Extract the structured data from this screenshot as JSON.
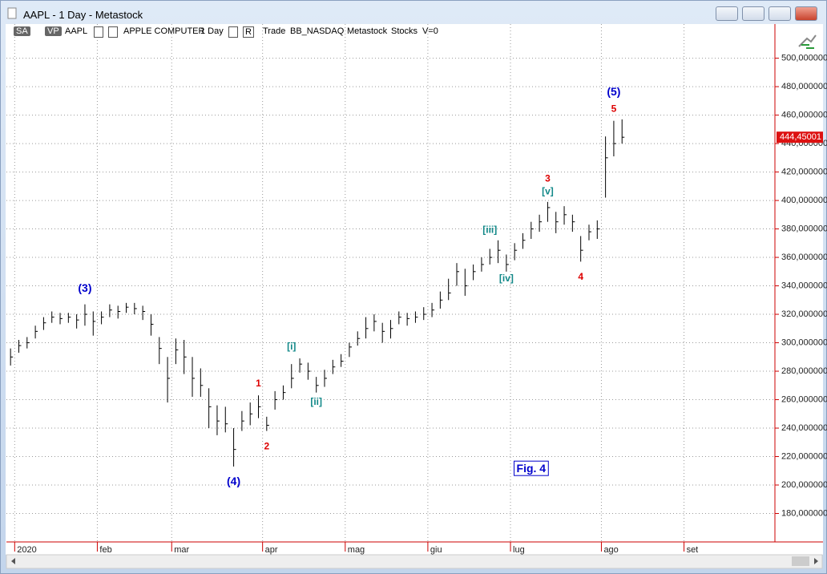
{
  "window": {
    "title": "AAPL - 1 Day - Metastock",
    "toolbar": [
      "SA",
      "VP",
      "AAPL",
      "APPLE COMPUTER",
      "1 Day",
      "R",
      "Trade",
      "BB_NASDAQ",
      "Metastock",
      "Stocks",
      "V=0"
    ]
  },
  "chart_data": {
    "type": "hlc",
    "color": "#000000",
    "grid": true,
    "categories": [
      null,
      "2020",
      null,
      null,
      null,
      null,
      null,
      null,
      null,
      null,
      null,
      "feb",
      null,
      null,
      null,
      null,
      null,
      null,
      null,
      null,
      "mar",
      null,
      null,
      null,
      null,
      null,
      null,
      null,
      null,
      null,
      null,
      "apr",
      null,
      null,
      null,
      null,
      null,
      null,
      null,
      null,
      null,
      "mag",
      null,
      null,
      null,
      null,
      null,
      null,
      null,
      null,
      null,
      "giu",
      null,
      null,
      null,
      null,
      null,
      null,
      null,
      null,
      null,
      "lug",
      null,
      null,
      null,
      null,
      null,
      null,
      null,
      null,
      null,
      null,
      "ago",
      null,
      null,
      null,
      null,
      null,
      null,
      null,
      null,
      null,
      "set",
      null,
      null,
      null,
      null,
      null,
      null,
      null,
      null,
      null,
      null
    ],
    "high": [
      296,
      302,
      304,
      312,
      318,
      322,
      321,
      321,
      320,
      327,
      322,
      322,
      327,
      326,
      328,
      328,
      326,
      320,
      304,
      290,
      303,
      302,
      290,
      282,
      268,
      256,
      255,
      240,
      252,
      258,
      263,
      248,
      266,
      270,
      285,
      289,
      286,
      276,
      281,
      288,
      292,
      300,
      308,
      318,
      320,
      314,
      316,
      322,
      321,
      322,
      325,
      328,
      336,
      345,
      356,
      352,
      355,
      360,
      366,
      372,
      362,
      370,
      377,
      385,
      390,
      399,
      392,
      396,
      390,
      375,
      383,
      386,
      445,
      456,
      457,
      null,
      null,
      null,
      null,
      null,
      null,
      null,
      null,
      null,
      null,
      null,
      null,
      null,
      null,
      null,
      null,
      null,
      null
    ],
    "low": [
      284,
      293,
      296,
      303,
      309,
      314,
      313,
      314,
      310,
      312,
      305,
      313,
      318,
      317,
      321,
      320,
      316,
      305,
      285,
      258,
      285,
      278,
      262,
      262,
      240,
      235,
      237,
      213,
      238,
      242,
      247,
      238,
      253,
      260,
      268,
      279,
      274,
      265,
      269,
      278,
      283,
      290,
      298,
      303,
      308,
      300,
      303,
      313,
      312,
      314,
      316,
      318,
      324,
      330,
      340,
      333,
      344,
      350,
      355,
      356,
      350,
      358,
      366,
      373,
      378,
      385,
      377,
      383,
      378,
      357,
      372,
      373,
      402,
      431,
      440,
      null,
      null,
      null,
      null,
      null,
      null,
      null,
      null,
      null,
      null,
      null,
      null,
      null,
      null,
      null,
      null,
      null,
      null
    ],
    "close": [
      290,
      298,
      300,
      308,
      314,
      318,
      317,
      318,
      316,
      320,
      315,
      318,
      323,
      322,
      325,
      324,
      322,
      313,
      296,
      275,
      295,
      290,
      275,
      270,
      255,
      245,
      243,
      225,
      245,
      250,
      255,
      242,
      260,
      265,
      275,
      285,
      280,
      270,
      275,
      283,
      287,
      297,
      303,
      310,
      315,
      308,
      310,
      318,
      317,
      318,
      320,
      323,
      330,
      335,
      350,
      340,
      350,
      355,
      360,
      365,
      355,
      365,
      372,
      380,
      385,
      395,
      385,
      390,
      385,
      365,
      378,
      380,
      430,
      440,
      444.45,
      null,
      null,
      null,
      null,
      null,
      null,
      null,
      null,
      null,
      null,
      null,
      null,
      null,
      null,
      null,
      null,
      null,
      null
    ],
    "last_price_label": "444,45001",
    "ylim": [
      160,
      524
    ],
    "yticks": [
      {
        "value": 180,
        "label": "180,000000"
      },
      {
        "value": 200,
        "label": "200,000000"
      },
      {
        "value": 220,
        "label": "220,000000"
      },
      {
        "value": 240,
        "label": "240,000000"
      },
      {
        "value": 260,
        "label": "260,000000"
      },
      {
        "value": 280,
        "label": "280,000000"
      },
      {
        "value": 300,
        "label": "300,000000"
      },
      {
        "value": 320,
        "label": "320,000000"
      },
      {
        "value": 340,
        "label": "340,000000"
      },
      {
        "value": 360,
        "label": "360,000000"
      },
      {
        "value": 380,
        "label": "380,000000"
      },
      {
        "value": 400,
        "label": "400,000000"
      },
      {
        "value": 420,
        "label": "420,000000"
      },
      {
        "value": 440,
        "label": "440,000000"
      },
      {
        "value": 460,
        "label": "460,000000"
      },
      {
        "value": 480,
        "label": "480,000000"
      },
      {
        "value": 500,
        "label": "500,000000"
      }
    ],
    "annotations": [
      {
        "text": "(3)",
        "x": 9,
        "y": 338,
        "color": "#0000cc"
      },
      {
        "text": "(4)",
        "x": 27,
        "y": 202,
        "color": "#0000cc"
      },
      {
        "text": "(5)",
        "x": 73,
        "y": 476,
        "color": "#0000cc"
      },
      {
        "text": "1",
        "x": 30,
        "y": 271,
        "color": "#dd0000"
      },
      {
        "text": "2",
        "x": 31,
        "y": 227,
        "color": "#dd0000"
      },
      {
        "text": "3",
        "x": 65,
        "y": 415,
        "color": "#dd0000"
      },
      {
        "text": "4",
        "x": 69,
        "y": 346,
        "color": "#dd0000"
      },
      {
        "text": "5",
        "x": 73,
        "y": 464,
        "color": "#dd0000"
      },
      {
        "text": "[i]",
        "x": 34,
        "y": 297,
        "color": "#118888"
      },
      {
        "text": "[ii]",
        "x": 37,
        "y": 258,
        "color": "#118888"
      },
      {
        "text": "[iii]",
        "x": 58,
        "y": 379,
        "color": "#118888"
      },
      {
        "text": "[iv]",
        "x": 60,
        "y": 345,
        "color": "#118888"
      },
      {
        "text": "[v]",
        "x": 65,
        "y": 406,
        "color": "#118888"
      },
      {
        "text": "Fig. 4",
        "x": 63,
        "y": 211,
        "color": "#0000cc",
        "box": true
      }
    ]
  }
}
